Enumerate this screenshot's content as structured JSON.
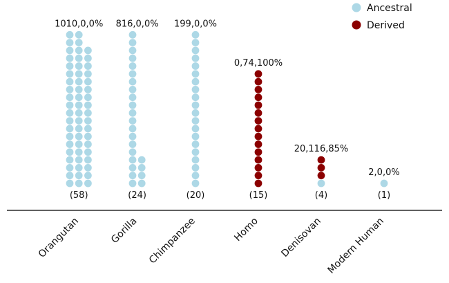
{
  "chart_data": {
    "type": "scatter",
    "title": "",
    "xlabel": "",
    "ylabel": "",
    "legend": {
      "placement": "top-right",
      "entries": [
        {
          "name": "Ancestral",
          "color": "#add8e6"
        },
        {
          "name": "Derived",
          "color": "#8b0000"
        }
      ]
    },
    "categories": [
      {
        "name": "Orangutan",
        "annotation": "1010,0,0%",
        "count_label": "(58)",
        "n": 58,
        "derived": 0,
        "columns": [
          20,
          20,
          18
        ]
      },
      {
        "name": "Gorilla",
        "annotation": "816,0,0%",
        "count_label": "(24)",
        "n": 24,
        "derived": 0,
        "columns": [
          20,
          4
        ]
      },
      {
        "name": "Chimpanzee",
        "annotation": "199,0,0%",
        "count_label": "(20)",
        "n": 20,
        "derived": 0,
        "columns": [
          20
        ]
      },
      {
        "name": "Homo",
        "annotation": "0,74,100%",
        "count_label": "(15)",
        "n": 15,
        "derived": 15,
        "columns": [
          15
        ]
      },
      {
        "name": "Denisovan",
        "annotation": "20,116,85%",
        "count_label": "(4)",
        "n": 4,
        "derived": 3,
        "columns": [
          4
        ]
      },
      {
        "name": "Modern Human",
        "annotation": "2,0,0%",
        "count_label": "(1)",
        "n": 1,
        "derived": 0,
        "columns": [
          1
        ]
      }
    ]
  }
}
